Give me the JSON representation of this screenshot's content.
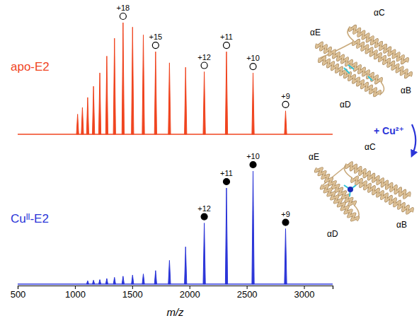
{
  "chart_data": [
    {
      "type": "spectrum",
      "xlim": [
        500,
        3250
      ],
      "ylim": [
        0,
        100
      ],
      "tick_labels": false,
      "series": [
        {
          "name": "apo-E2",
          "color": "#f0441f",
          "marker": "circle-open",
          "x": [
            1023,
            1065,
            1111,
            1162,
            1217,
            1278,
            1345,
            1420,
            1503,
            1597,
            1704,
            1825,
            1966,
            2129,
            2323,
            2555,
            2839
          ],
          "values": [
            18,
            24,
            33,
            43,
            55,
            70,
            86,
            100,
            96,
            89,
            74,
            64,
            60,
            56,
            74,
            55,
            21
          ],
          "labels": [
            null,
            null,
            null,
            null,
            null,
            null,
            null,
            "+18",
            null,
            null,
            "+15",
            null,
            null,
            "+12",
            "+11",
            "+10",
            "+9"
          ]
        }
      ],
      "annotations": [
        "αE",
        "αC",
        "αB",
        "αD"
      ]
    },
    {
      "type": "spectrum",
      "xlim": [
        500,
        3250
      ],
      "ylim": [
        0,
        100
      ],
      "xticks": [
        500,
        1000,
        1500,
        2000,
        2500,
        3000
      ],
      "x_label": "m/z",
      "tick_labels": "x",
      "series": [
        {
          "name": "Cuᴵᴵ-E2",
          "color": "#2b35d8",
          "marker": "circle",
          "x": [
            1111,
            1162,
            1217,
            1278,
            1345,
            1420,
            1503,
            1597,
            1704,
            1825,
            1966,
            2129,
            2323,
            2555,
            2839
          ],
          "values": [
            3,
            3.5,
            4,
            5,
            6,
            7,
            8,
            9,
            12,
            21,
            33,
            54,
            85,
            100,
            49
          ],
          "labels": [
            null,
            null,
            null,
            null,
            null,
            null,
            null,
            null,
            null,
            null,
            null,
            "+12",
            "+11",
            "+10",
            "+9"
          ]
        }
      ],
      "annotations": [
        "αE",
        "αC",
        "αB",
        "αD",
        "+ Cu²⁺"
      ]
    }
  ]
}
